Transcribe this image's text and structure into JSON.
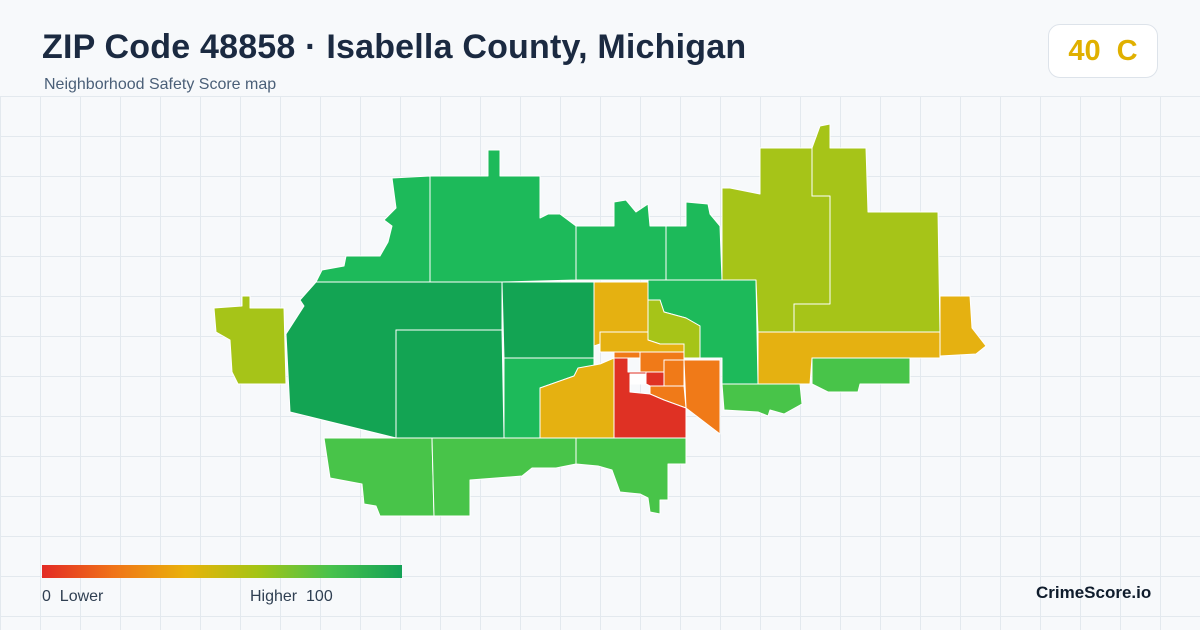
{
  "header": {
    "title": "ZIP Code 48858 · Isabella County, Michigan",
    "subtitle": "Neighborhood Safety Score map"
  },
  "score_badge": {
    "score": "40",
    "grade": "C",
    "color": "#e0b000"
  },
  "legend": {
    "low_value": "0",
    "low_label": "Lower",
    "high_label": "Higher",
    "high_value": "100",
    "gradient_colors": [
      "#e32b25",
      "#f07418",
      "#e9b20b",
      "#a4c414",
      "#48c24c",
      "#14a156"
    ]
  },
  "brand": {
    "name": "CrimeScore.io"
  },
  "map": {
    "colors": {
      "red": "#df3124",
      "orange": "#f07a18",
      "amber": "#e5b111",
      "yellow_green": "#a6c418",
      "light_green": "#48c449",
      "green": "#1dba5a",
      "dark_green": "#13a453",
      "white_cell": "#ffffff"
    }
  }
}
